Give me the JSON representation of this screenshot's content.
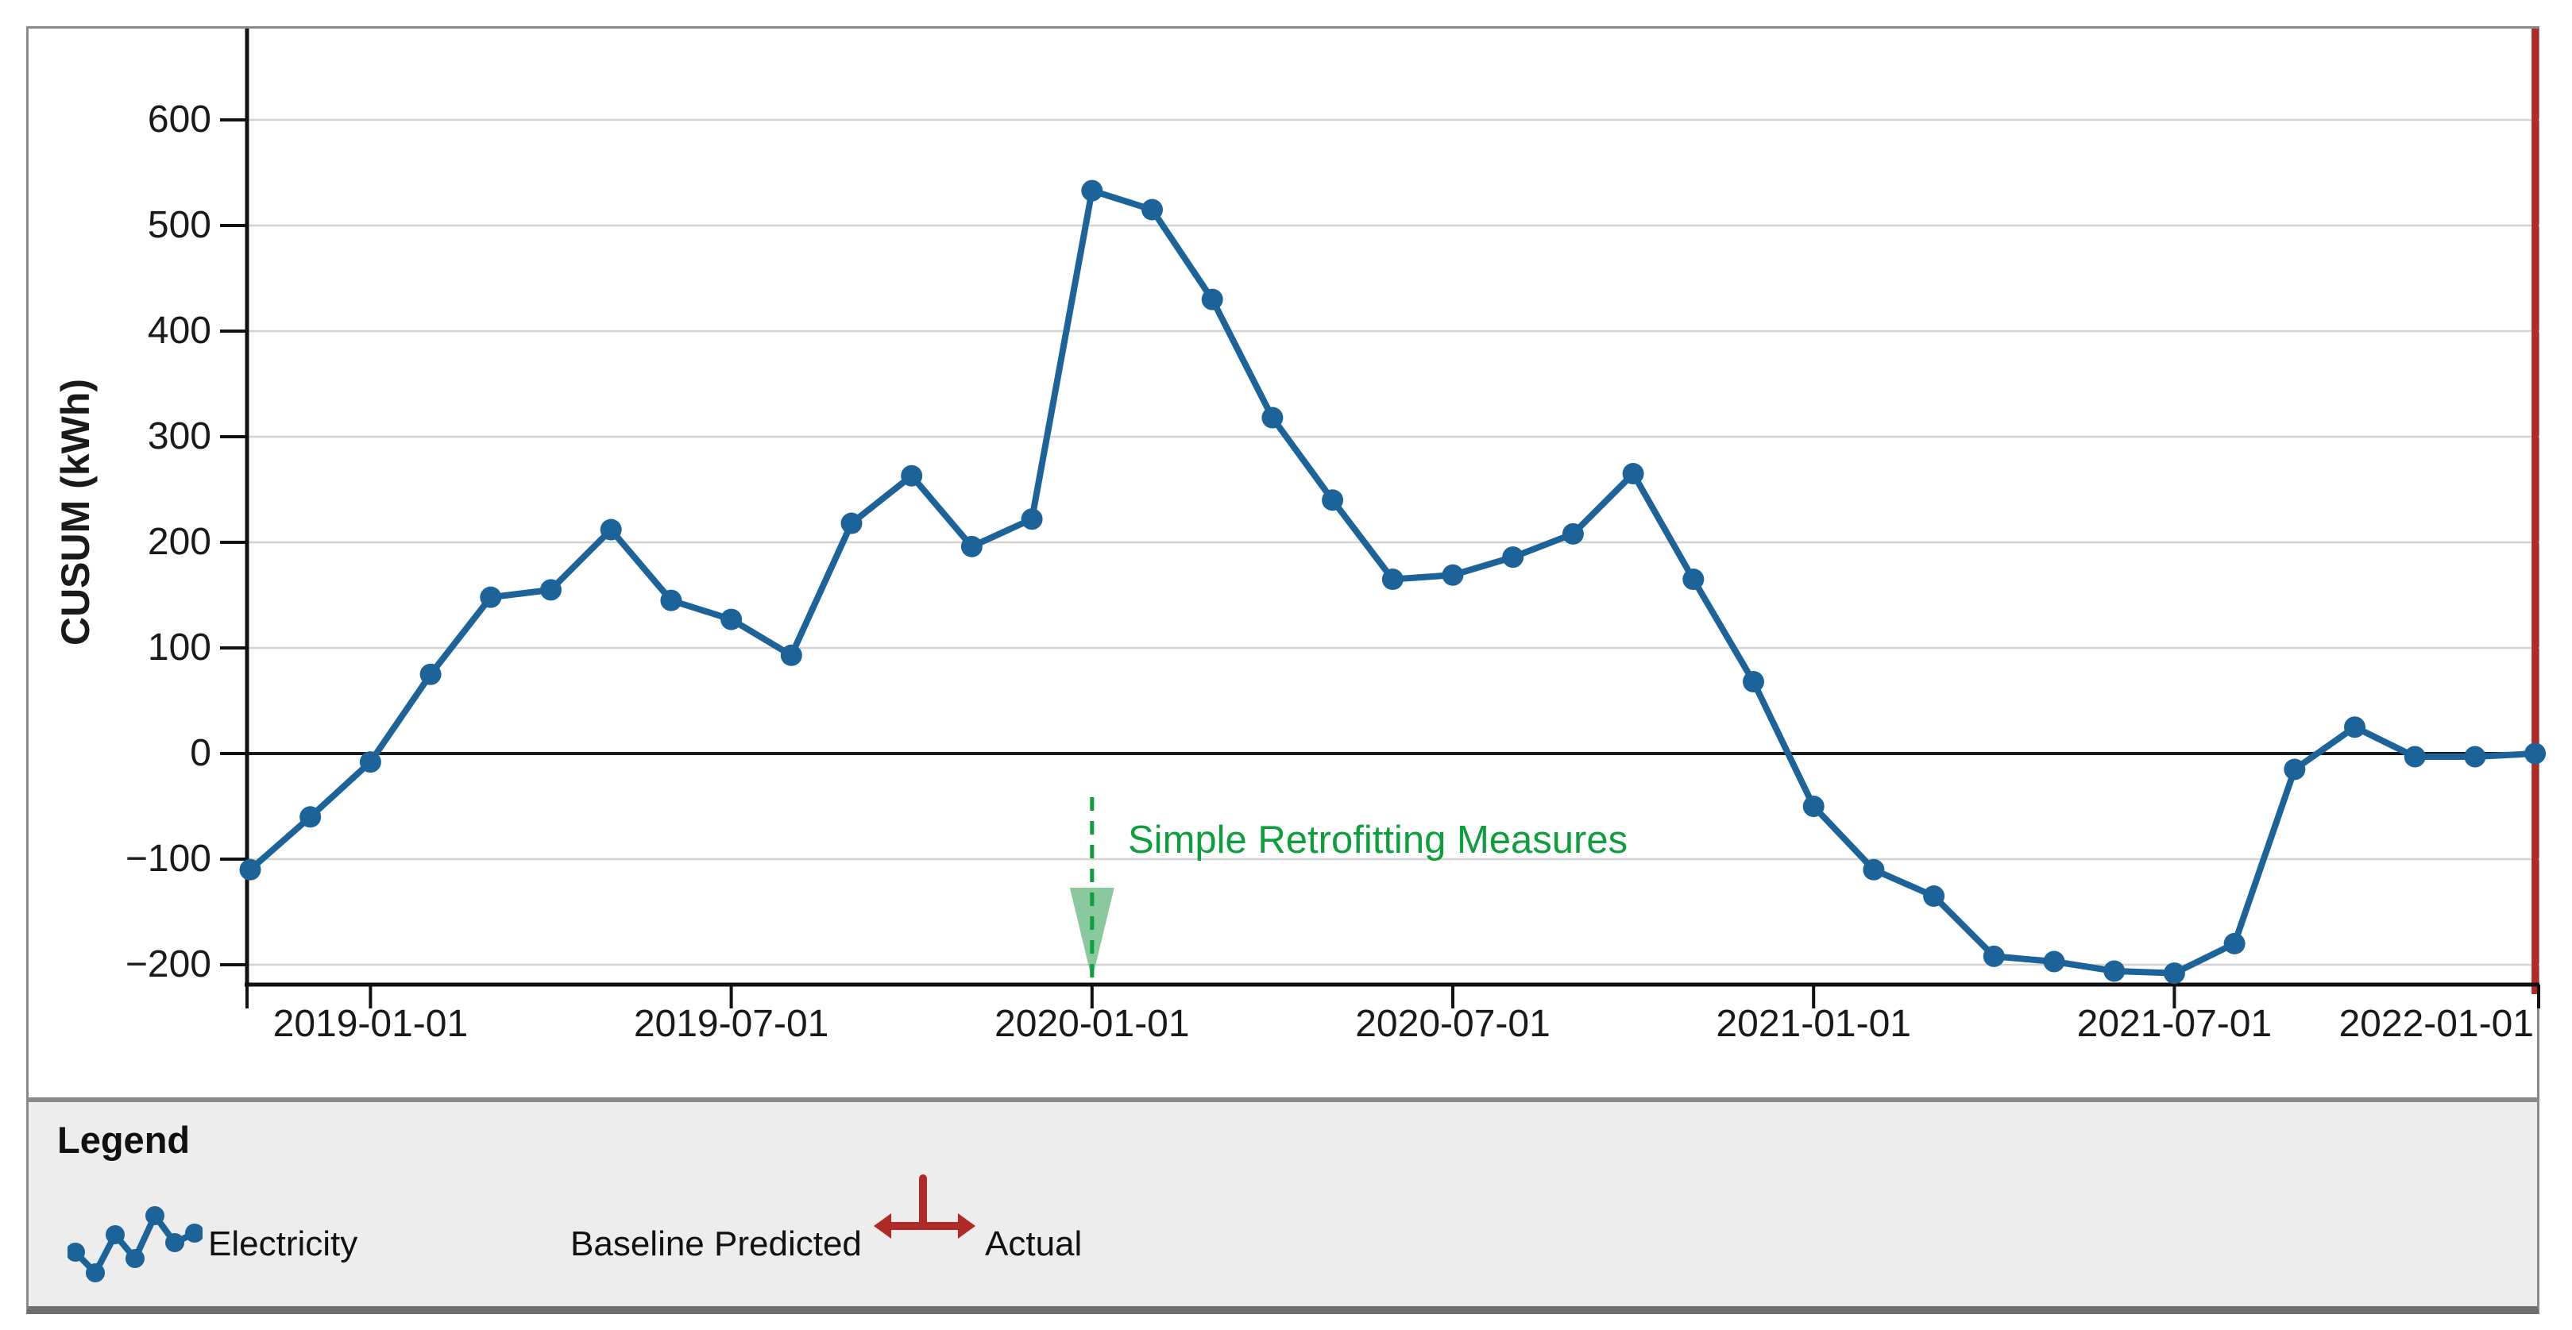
{
  "chart_data": {
    "type": "line",
    "title": "",
    "ylabel": "CUSUM (kWh)",
    "xlabel": "",
    "grid": true,
    "ylim": [
      -219,
      688
    ],
    "y_ticks": [
      600,
      500,
      400,
      300,
      200,
      100,
      0,
      -100,
      -200
    ],
    "x_ticks": [
      {
        "label": "2019-01-01",
        "month_index": 2
      },
      {
        "label": "2019-07-01",
        "month_index": 8
      },
      {
        "label": "2020-01-01",
        "month_index": 14
      },
      {
        "label": "2020-07-01",
        "month_index": 20
      },
      {
        "label": "2021-01-01",
        "month_index": 26
      },
      {
        "label": "2021-07-01",
        "month_index": 32
      },
      {
        "label": "2022-01-01",
        "month_index": 38
      }
    ],
    "series": [
      {
        "name": "Electricity",
        "color": "#1c6399",
        "x": [
          "2018-11",
          "2018-12",
          "2019-01",
          "2019-02",
          "2019-03",
          "2019-04",
          "2019-05",
          "2019-06",
          "2019-07",
          "2019-08",
          "2019-09",
          "2019-10",
          "2019-11",
          "2019-12",
          "2020-01",
          "2020-02",
          "2020-03",
          "2020-04",
          "2020-05",
          "2020-06",
          "2020-07",
          "2020-08",
          "2020-09",
          "2020-10",
          "2020-11",
          "2020-12",
          "2021-01",
          "2021-02",
          "2021-03",
          "2021-04",
          "2021-05",
          "2021-06",
          "2021-07",
          "2021-08",
          "2021-09",
          "2021-10",
          "2021-11",
          "2021-12",
          "2022-01"
        ],
        "values": [
          -110,
          -60,
          -8,
          75,
          148,
          155,
          212,
          145,
          127,
          93,
          218,
          263,
          196,
          222,
          533,
          515,
          430,
          318,
          240,
          165,
          169,
          186,
          208,
          265,
          165,
          68,
          -50,
          -110,
          -135,
          -192,
          -197,
          -206,
          -208,
          -180,
          -15,
          25,
          -3,
          -3,
          0
        ]
      }
    ],
    "annotation": {
      "label": "Simple Retrofitting Measures",
      "date": "2020-01-01",
      "month_index": 14,
      "color": "#0f9e3d",
      "arrow_fill": "#7cc392"
    },
    "actual_marker": {
      "date": "2022-01-01",
      "color": "#b12a25"
    }
  },
  "legend": {
    "title": "Legend",
    "items": [
      {
        "label": "Electricity",
        "icon": "line-series-icon",
        "color": "#1c6399"
      },
      {
        "label": "Baseline Predicted",
        "icon": null
      },
      {
        "label": "Actual",
        "icon": "baseline-actual-divider-icon",
        "color": "#b12a25"
      }
    ]
  }
}
